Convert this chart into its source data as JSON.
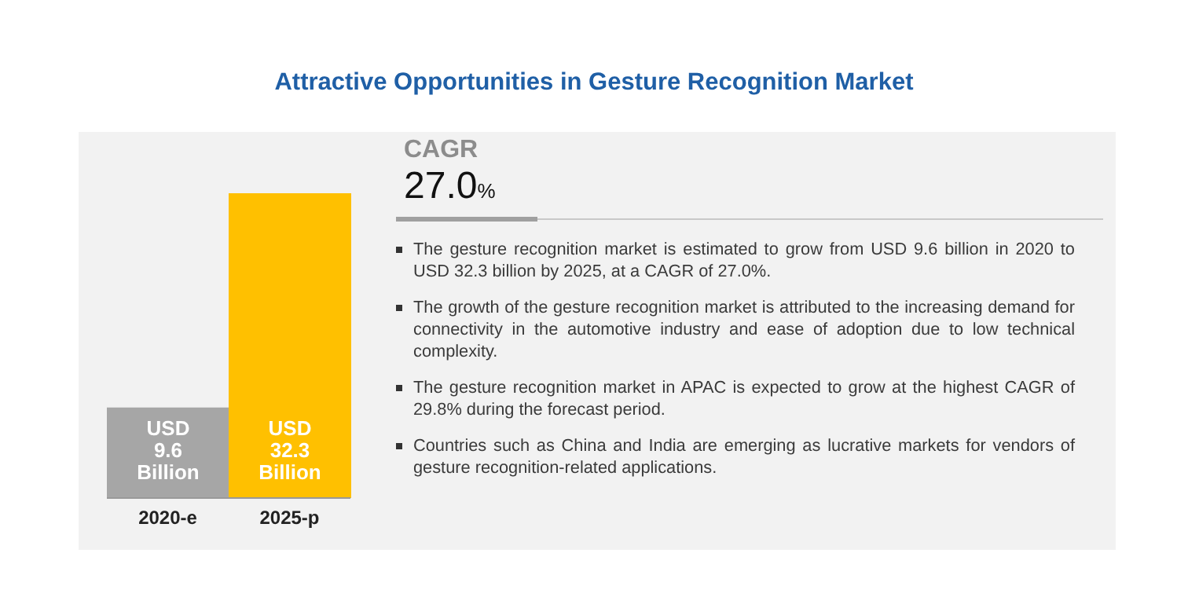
{
  "chart_data": {
    "type": "bar",
    "title": "Attractive Opportunities in Gesture Recognition Market",
    "categories": [
      "2020-e",
      "2025-p"
    ],
    "values": [
      9.6,
      32.3
    ],
    "colors": [
      "#a6a6a6",
      "#ffc000"
    ],
    "value_labels": [
      "USD 9.6 Billion",
      "USD 32.3 Billion"
    ],
    "annotations": [
      "CAGR",
      "27.0%",
      "The gesture recognition market is estimated to grow from USD 9.6 billion in 2020 to USD 32.3 billion by 2025, at a CAGR of 27.0%.",
      "The growth of the gesture recognition market is attributed to the increasing demand for connectivity in the automotive industry and ease of adoption due to low technical complexity.",
      "The gesture recognition market in APAC is expected to grow at the highest CAGR of 29.8% during the forecast period.",
      "Countries such as China and India are emerging as lucrative markets for vendors of gesture recognition-related applications."
    ],
    "legend": false,
    "grid": false
  }
}
